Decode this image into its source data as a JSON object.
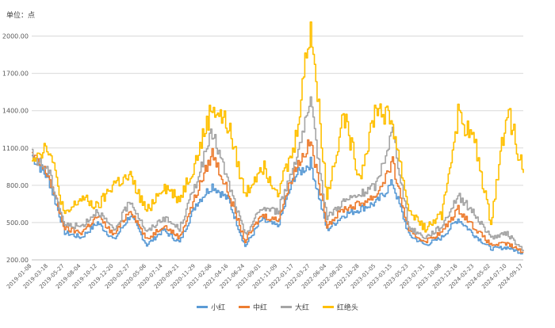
{
  "chart_data": {
    "type": "line",
    "unit_label": "单位：点",
    "ylim": [
      200,
      2150
    ],
    "yticks": [
      "200.00",
      "500.00",
      "800.00",
      "1100.00",
      "1400.00",
      "1700.00",
      "2000.00"
    ],
    "ytick_values": [
      200,
      500,
      800,
      1100,
      1400,
      1700,
      2000
    ],
    "grid": true,
    "legend_position": "bottom",
    "x_categories": [
      "2019-01-08",
      "2019-03-18",
      "2019-05-27",
      "2019-08-04",
      "2019-10-12",
      "2019-12-20",
      "2020-02-27",
      "2020-05-06",
      "2020-07-14",
      "2020-09-21",
      "2020-11-29",
      "2021-02-06",
      "2021-04-16",
      "2021-06-24",
      "2021-09-01",
      "2021-11-09",
      "2022-01-17",
      "2022-03-27",
      "2022-06-04",
      "2022-08-20",
      "2022-10-28",
      "2023-01-05",
      "2023-03-15",
      "2023-05-23",
      "2023-07-31",
      "2023-10-08",
      "2023-12-16",
      "2024-02-23",
      "2024-05-02",
      "2024-07-10",
      "2024-09-17"
    ],
    "series": [
      {
        "name": "小红",
        "color": "#5b9bd5",
        "values": [
          1040,
          850,
          420,
          380,
          500,
          360,
          560,
          320,
          440,
          340,
          650,
          800,
          680,
          310,
          520,
          470,
          870,
          980,
          440,
          560,
          610,
          660,
          820,
          400,
          320,
          380,
          530,
          400,
          290,
          300,
          250
        ]
      },
      {
        "name": "中红",
        "color": "#ed7d31",
        "values": [
          1040,
          880,
          450,
          420,
          550,
          400,
          610,
          360,
          480,
          380,
          720,
          1060,
          730,
          350,
          560,
          520,
          920,
          1150,
          480,
          610,
          650,
          720,
          980,
          420,
          350,
          420,
          610,
          460,
          320,
          330,
          260
        ]
      },
      {
        "name": "大红",
        "color": "#a5a5a5",
        "values": [
          1040,
          920,
          480,
          470,
          600,
          430,
          680,
          420,
          540,
          450,
          820,
          1230,
          810,
          400,
          620,
          590,
          980,
          1440,
          540,
          670,
          720,
          800,
          1240,
          460,
          380,
          470,
          720,
          570,
          380,
          410,
          270
        ]
      },
      {
        "name": "红绝头",
        "color": "#ffc000",
        "values": [
          1040,
          1120,
          550,
          700,
          620,
          820,
          860,
          590,
          800,
          690,
          1000,
          1440,
          1270,
          720,
          970,
          760,
          1100,
          2110,
          700,
          1370,
          860,
          1440,
          1300,
          600,
          450,
          560,
          1370,
          1150,
          500,
          1430,
          900
        ]
      }
    ]
  }
}
